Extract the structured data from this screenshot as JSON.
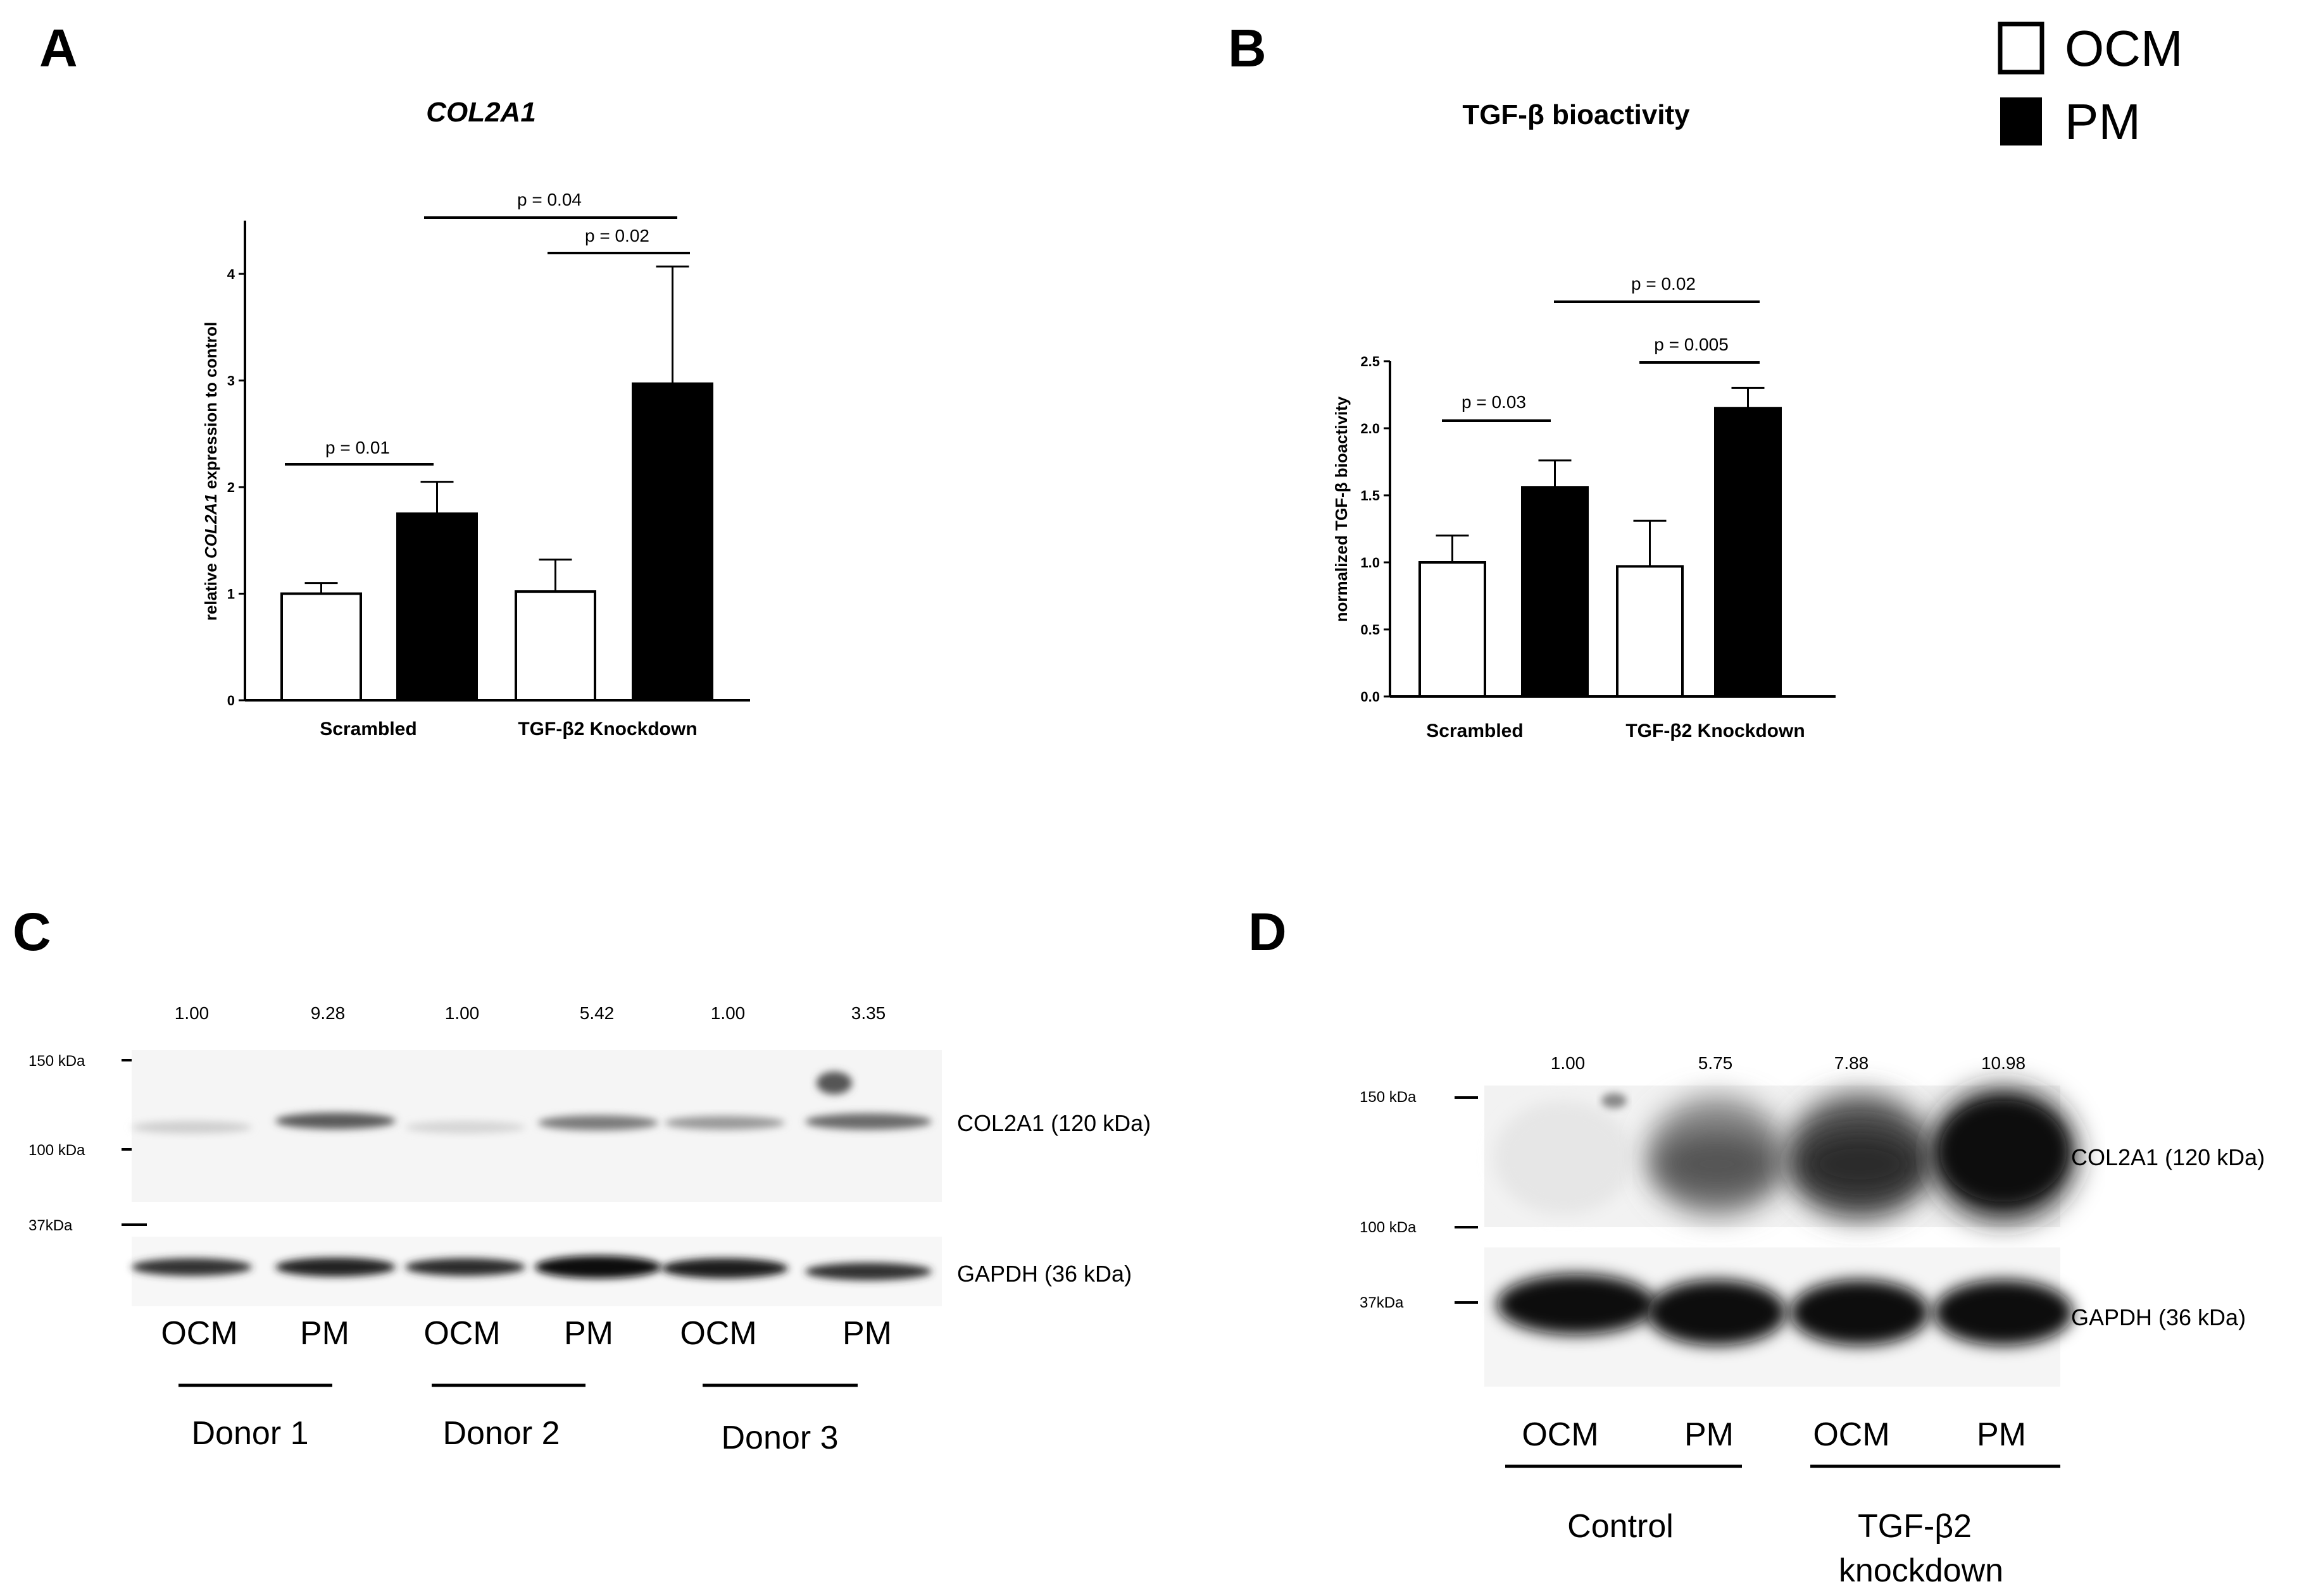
{
  "legend": {
    "items": [
      {
        "label": "OCM",
        "color": "#ffffff"
      },
      {
        "label": "PM",
        "color": "#000000"
      }
    ]
  },
  "panelA": {
    "letter": "A",
    "y_label_prefix": "relative ",
    "y_label_italic": "COL2A1",
    "y_label_suffix": " expression to control",
    "y_ticks": [
      "0",
      "1",
      "2",
      "3",
      "4"
    ],
    "pvalues": [
      "p = 0.01",
      "p = 0.04",
      "p = 0.02"
    ]
  },
  "panelB": {
    "letter": "B",
    "y_label": "normalized TGF-β bioactivity",
    "y_ticks": [
      "0.0",
      "0.5",
      "1.0",
      "1.5",
      "2.0",
      "2.5"
    ],
    "pvalues": [
      "p = 0.03",
      "p = 0.02",
      "p = 0.005"
    ]
  },
  "chart_data": [
    {
      "type": "bar",
      "title": "COL2A1",
      "ylabel": "relative COL2A1 expression to control",
      "xlabel": "",
      "categories": [
        "Scrambled",
        "TGF-β2 Knockdown"
      ],
      "ylim": [
        0,
        4.5
      ],
      "series": [
        {
          "name": "OCM",
          "values": [
            1.0,
            1.02
          ],
          "errors": [
            0.1,
            0.3
          ]
        },
        {
          "name": "PM",
          "values": [
            1.75,
            2.97
          ],
          "errors": [
            0.3,
            1.1
          ]
        }
      ],
      "legend": "top-right"
    },
    {
      "type": "bar",
      "title": "TGF-β bioactivity",
      "ylabel": "normalized TGF-β bioactivity",
      "xlabel": "",
      "categories": [
        "Scrambled",
        "TGF-β2 Knockdown"
      ],
      "ylim": [
        0,
        2.5
      ],
      "series": [
        {
          "name": "OCM",
          "values": [
            1.0,
            0.97
          ],
          "errors": [
            0.2,
            0.34
          ]
        },
        {
          "name": "PM",
          "values": [
            1.56,
            2.15
          ],
          "errors": [
            0.2,
            0.15
          ]
        }
      ],
      "legend": "top-right"
    }
  ],
  "panelC": {
    "letter": "C",
    "values": [
      "1.00",
      "9.28",
      "1.00",
      "5.42",
      "1.00",
      "3.35"
    ],
    "mw": [
      "150 kDa",
      "100 kDa",
      "37kDa"
    ],
    "proteins": [
      "COL2A1 (120 kDa)",
      "GAPDH (36 kDa)"
    ],
    "lanes": [
      "OCM",
      "PM",
      "OCM",
      "PM",
      "OCM",
      "PM"
    ],
    "groups": [
      "Donor 1",
      "Donor 2",
      "Donor 3"
    ]
  },
  "panelD": {
    "letter": "D",
    "values": [
      "1.00",
      "5.75",
      "7.88",
      "10.98"
    ],
    "mw": [
      "150 kDa",
      "100 kDa",
      "37kDa"
    ],
    "proteins": [
      "COL2A1 (120 kDa)",
      "GAPDH (36 kDa)"
    ],
    "lanes": [
      "OCM",
      "PM",
      "OCM",
      "PM"
    ],
    "groups": [
      "Control"
    ],
    "group2_line1": "TGF-β2",
    "group2_line2": "knockdown"
  }
}
